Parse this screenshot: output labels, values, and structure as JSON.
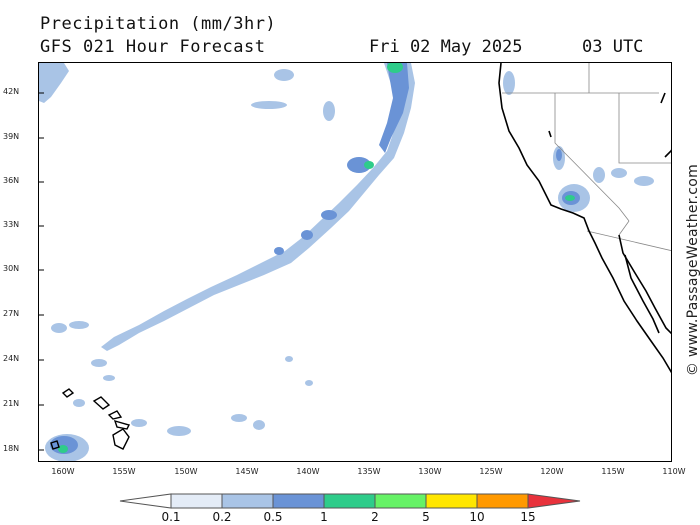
{
  "header": {
    "title": "Precipitation (mm/3hr)",
    "subtitle": "GFS 021 Hour Forecast",
    "date": "Fri 02 May 2025",
    "time": "03 UTC"
  },
  "axes": {
    "lat_labels": [
      "42N",
      "39N",
      "36N",
      "33N",
      "30N",
      "27N",
      "24N",
      "21N",
      "18N"
    ],
    "lat_values": [
      42,
      39,
      36,
      33,
      30,
      27,
      24,
      21,
      18
    ],
    "lon_labels": [
      "160W",
      "155W",
      "150W",
      "145W",
      "140W",
      "135W",
      "130W",
      "125W",
      "120W",
      "115W",
      "110W"
    ],
    "lon_values": [
      -160,
      -155,
      -150,
      -145,
      -140,
      -135,
      -130,
      -125,
      -120,
      -115,
      -110
    ]
  },
  "legend": {
    "labels": [
      "0.1",
      "0.2",
      "0.5",
      "1",
      "2",
      "5",
      "10",
      "15"
    ],
    "colors": [
      "#ffffff",
      "#e4ecf7",
      "#a9c4e6",
      "#6a93d6",
      "#2ecc8a",
      "#66f266",
      "#ffe600",
      "#ff9900",
      "#e8323c"
    ]
  },
  "credit": "© www.PassageWeather.com"
}
